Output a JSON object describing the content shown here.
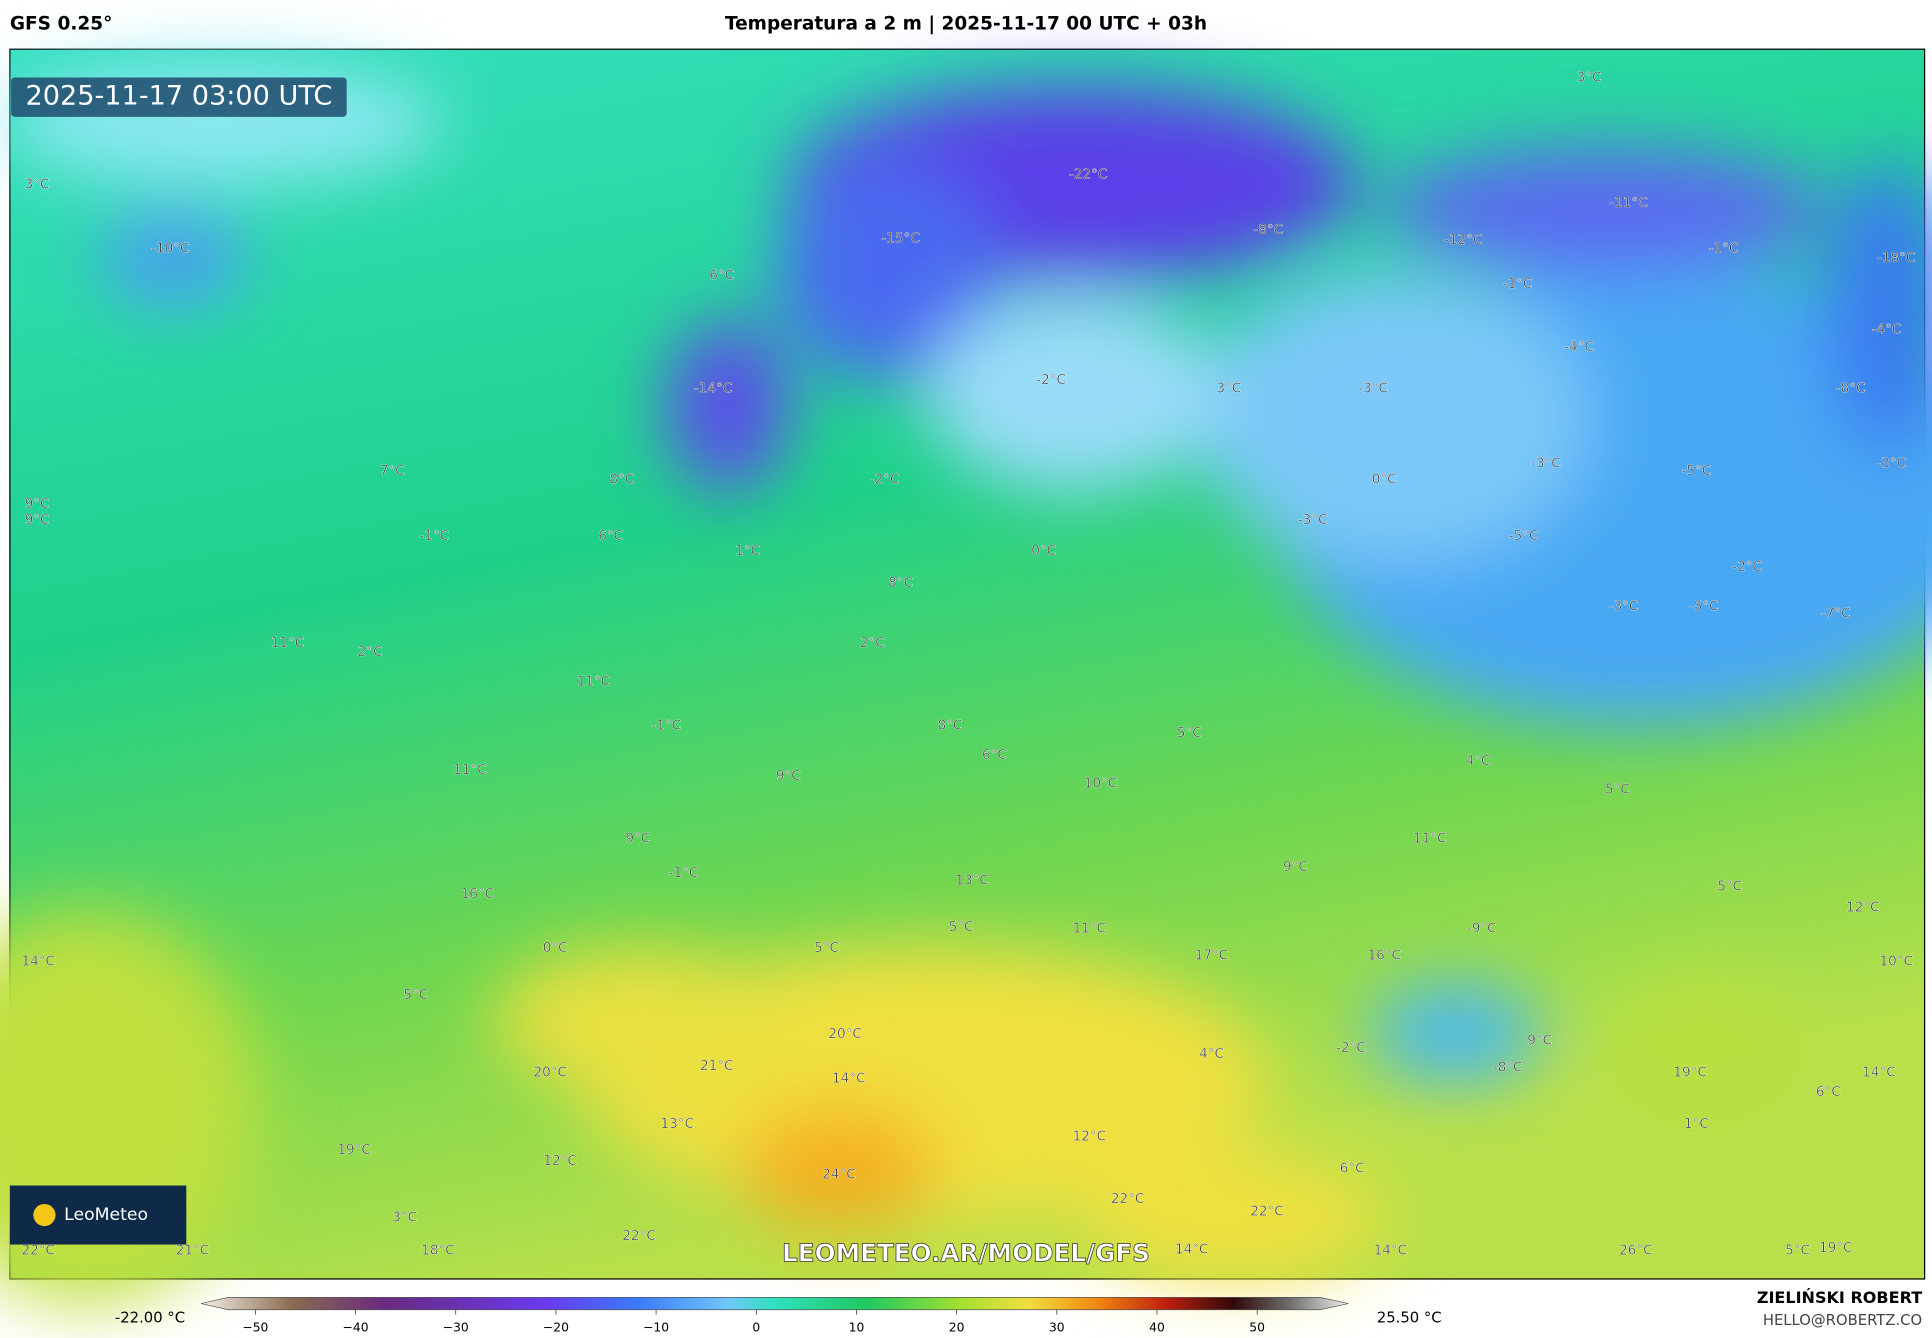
{
  "header": {
    "model": "GFS 0.25°",
    "title": "Temperatura a 2 m | 2025-11-17 00 UTC + 03h"
  },
  "map": {
    "timestamp": "2025-11-17 03:00 UTC",
    "watermark": "LEOMETEO.AR/MODEL/GFS",
    "logo": "LeoMeteo",
    "labels": [
      "3°C",
      "3°C",
      "-10°C",
      "-22°C",
      "-15°C",
      "-8°C",
      "-12°C",
      "-11°C",
      "-1°C",
      "-18°C",
      "-1°C",
      "6°C",
      "-4°C",
      "-4°C",
      "-2°C",
      "3°C",
      "-3°C",
      "-14°C",
      "-8°C",
      "7°C",
      "8°C",
      "-2°C",
      "0°C",
      "-3°C",
      "-5°C",
      "-3°C",
      "9°C",
      "9°C",
      "-3°C",
      "-1°C",
      "6°C",
      "1°C",
      "0°C",
      "-5°C",
      "-2°C",
      "8°C",
      "-3°C",
      "-5°C",
      "-7°C",
      "11°C",
      "2°C",
      "2°C",
      "11°C",
      "-1°C",
      "8°C",
      "5°C",
      "6°C",
      "4°C",
      "11°C",
      "9°C",
      "10°C",
      "5°C",
      "9°C",
      "11°C",
      "9°C",
      "-1°C",
      "13°C",
      "5°C",
      "16°C",
      "12°C",
      "5°C",
      "-9°C",
      "11°C",
      "0°C",
      "5°C",
      "17°C",
      "16°C",
      "14°C",
      "10°C",
      "5°C",
      "20°C",
      "-2°C",
      "9°C",
      "4°C",
      "21°C",
      "-8°C",
      "20°C",
      "14°C",
      "19°C",
      "14°C",
      "6°C",
      "13°C",
      "1°C",
      "12°C",
      "19°C",
      "12°C",
      "6°C",
      "24°C",
      "22°C",
      "22°C",
      "3°C",
      "22°C",
      "22°C",
      "21°C",
      "18°C",
      "14°C",
      "14°C",
      "26°C",
      "5°C",
      "19°C"
    ]
  },
  "colorbar": {
    "min_label": "-22.00 °C",
    "max_label": "25.50 °C",
    "ticks": [
      {
        "value": -50,
        "label": "−50"
      },
      {
        "value": -40,
        "label": "−40"
      },
      {
        "value": -30,
        "label": "−30"
      },
      {
        "value": -20,
        "label": "−20"
      },
      {
        "value": -10,
        "label": "−10"
      },
      0,
      10,
      20,
      30,
      40,
      50
    ]
  },
  "footer": {
    "author": "ZIELIŃSKI ROBERT",
    "email": "HELLO@ROBERTZ.CO"
  }
}
